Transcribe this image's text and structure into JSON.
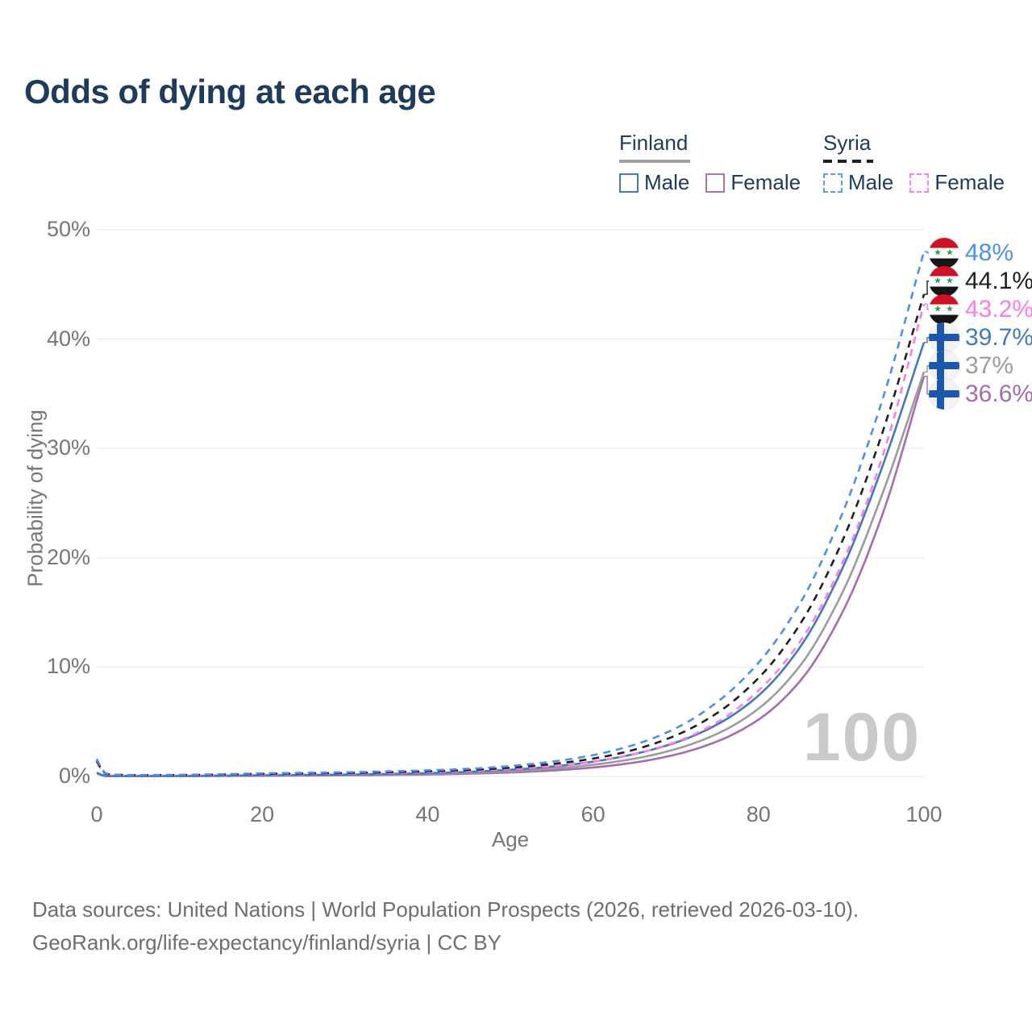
{
  "title": "Odds of dying at each age",
  "legend": {
    "groups": [
      {
        "name": "Finland",
        "line_style": "solid",
        "underline_color": "#9e9e9e",
        "items": [
          {
            "label": "Male",
            "color": "#4379bf"
          },
          {
            "label": "Female",
            "color": "#ad72b5"
          }
        ]
      },
      {
        "name": "Syria",
        "line_style": "dashed",
        "underline_color": "#1f1f1f",
        "items": [
          {
            "label": "Male",
            "color": "#5b9cf5"
          },
          {
            "label": "Female",
            "color": "#ff85e6"
          }
        ]
      }
    ]
  },
  "axes": {
    "y_label": "Probability of dying",
    "x_label": "Age",
    "y_ticks": [
      "0%",
      "10%",
      "20%",
      "30%",
      "40%",
      "50%"
    ],
    "x_ticks": [
      "0",
      "20",
      "40",
      "60",
      "80",
      "100"
    ]
  },
  "watermark": "100",
  "footer": {
    "line1": "Data sources: United Nations | World Population Prospects (2026, retrieved 2026-03-10).",
    "line2": "GeoRank.org/life-expectancy/finland/syria | CC BY"
  },
  "flags": {
    "syria": {
      "red": "#ce1126",
      "white": "#ffffff",
      "black": "#151515",
      "star_color": "#2e9e47",
      "stars": "★ ★"
    },
    "finland": {
      "bg": "#f2f2f2",
      "cross": "#1d57ad"
    }
  },
  "chart_data": {
    "type": "line",
    "title": "Odds of dying at each age",
    "xlabel": "Age",
    "ylabel": "Probability of dying",
    "xlim": [
      0,
      100
    ],
    "ylim_percent": [
      0,
      50
    ],
    "grid": true,
    "legend_position": "top-right",
    "x_ages": [
      0,
      1,
      2,
      5,
      10,
      15,
      20,
      25,
      30,
      35,
      40,
      45,
      50,
      55,
      60,
      65,
      70,
      75,
      80,
      85,
      90,
      95,
      100
    ],
    "series": [
      {
        "name": "Syria Male",
        "flag": "syria",
        "dashed": true,
        "color": "#4a90f0",
        "end_label": "48%",
        "values_percent": [
          1.6,
          0.3,
          0.18,
          0.13,
          0.15,
          0.2,
          0.28,
          0.33,
          0.38,
          0.46,
          0.56,
          0.7,
          0.95,
          1.35,
          1.95,
          2.9,
          4.4,
          6.8,
          10.4,
          15.8,
          23.8,
          34.5,
          48.0
        ]
      },
      {
        "name": "Syria (both sexes)",
        "flag": "syria",
        "dashed": true,
        "color": "#1f1f1f",
        "end_label": "44.1%",
        "values_percent": [
          1.45,
          0.27,
          0.16,
          0.12,
          0.13,
          0.17,
          0.23,
          0.27,
          0.31,
          0.38,
          0.47,
          0.59,
          0.8,
          1.13,
          1.63,
          2.45,
          3.75,
          5.8,
          9.0,
          13.9,
          21.3,
          31.5,
          44.1
        ]
      },
      {
        "name": "Syria Female",
        "flag": "syria",
        "dashed": true,
        "color": "#fb7ce8",
        "end_label": "43.2%",
        "values_percent": [
          1.3,
          0.24,
          0.14,
          0.1,
          0.11,
          0.14,
          0.18,
          0.21,
          0.25,
          0.3,
          0.38,
          0.49,
          0.66,
          0.94,
          1.36,
          2.05,
          3.15,
          4.95,
          7.85,
          12.3,
          19.3,
          29.3,
          43.2
        ]
      },
      {
        "name": "Finland Male",
        "flag": "finland",
        "dashed": false,
        "color": "#4379bf",
        "end_label": "39.7%",
        "values_percent": [
          0.35,
          0.05,
          0.03,
          0.03,
          0.04,
          0.07,
          0.1,
          0.13,
          0.17,
          0.22,
          0.3,
          0.42,
          0.61,
          0.9,
          1.35,
          2.05,
          3.1,
          4.75,
          7.4,
          11.8,
          18.8,
          28.4,
          39.7
        ]
      },
      {
        "name": "Finland (both sexes)",
        "flag": "finland",
        "dashed": false,
        "color": "#9c9c9c",
        "end_label": "37%",
        "values_percent": [
          0.3,
          0.045,
          0.027,
          0.027,
          0.035,
          0.055,
          0.08,
          0.1,
          0.13,
          0.17,
          0.23,
          0.33,
          0.48,
          0.71,
          1.07,
          1.62,
          2.5,
          3.9,
          6.2,
          10.1,
          16.6,
          25.9,
          37.0
        ]
      },
      {
        "name": "Finland Female",
        "flag": "finland",
        "dashed": false,
        "color": "#a76bae",
        "end_label": "36.6%",
        "values_percent": [
          0.27,
          0.04,
          0.024,
          0.024,
          0.03,
          0.045,
          0.06,
          0.08,
          0.1,
          0.13,
          0.17,
          0.25,
          0.36,
          0.54,
          0.82,
          1.27,
          2.0,
          3.2,
          5.2,
          8.7,
          14.8,
          24.0,
          36.6
        ]
      }
    ]
  }
}
